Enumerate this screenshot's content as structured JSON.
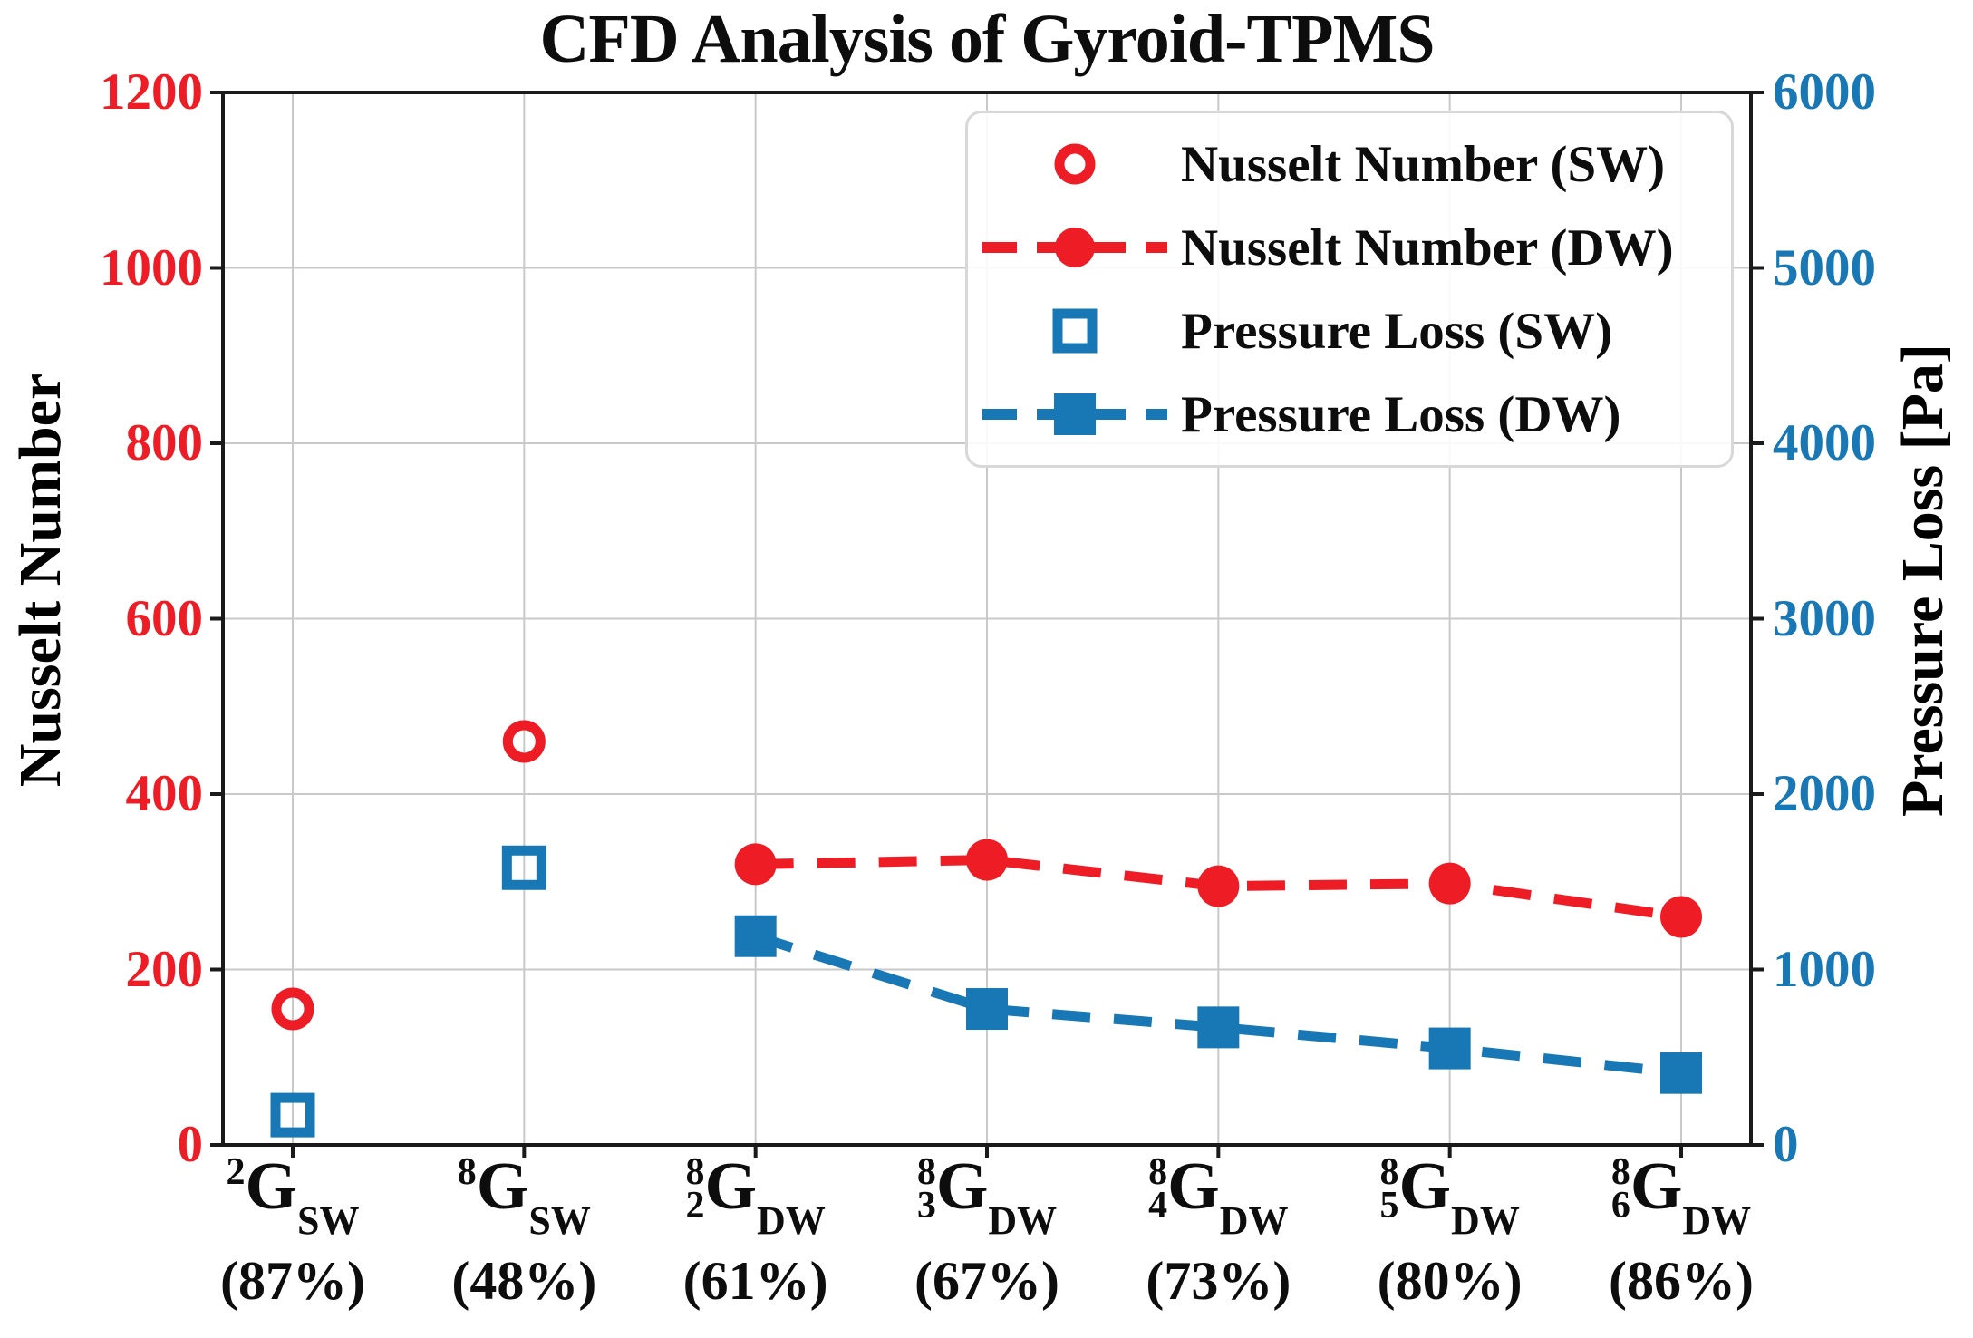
{
  "chart_data": {
    "type": "scatter-line",
    "title": "CFD Analysis of Gyroid-TPMS",
    "grid": true,
    "legend_position": "upper right",
    "axes": {
      "left": {
        "label": "Nusselt Number",
        "color": "#ee1c25",
        "min": 0,
        "max": 1200,
        "ticks": [
          0,
          200,
          400,
          600,
          800,
          1000,
          1200
        ]
      },
      "right": {
        "label": "Pressure Loss [Pa]",
        "color": "#1778b5",
        "min": 0,
        "max": 6000,
        "ticks": [
          0,
          1000,
          2000,
          3000,
          4000,
          5000,
          6000
        ]
      }
    },
    "categories": [
      {
        "sup": "2",
        "presub": "",
        "base": "G",
        "sub": "SW",
        "pct": "(87%)",
        "label": "2G_SW (87%)"
      },
      {
        "sup": "8",
        "presub": "",
        "base": "G",
        "sub": "SW",
        "pct": "(48%)",
        "label": "8G_SW (48%)"
      },
      {
        "sup": "8",
        "presub": "2",
        "base": "G",
        "sub": "DW",
        "pct": "(61%)",
        "label": "8_2G_DW (61%)"
      },
      {
        "sup": "8",
        "presub": "3",
        "base": "G",
        "sub": "DW",
        "pct": "(67%)",
        "label": "8_3G_DW (67%)"
      },
      {
        "sup": "8",
        "presub": "4",
        "base": "G",
        "sub": "DW",
        "pct": "(73%)",
        "label": "8_4G_DW (73%)"
      },
      {
        "sup": "8",
        "presub": "5",
        "base": "G",
        "sub": "DW",
        "pct": "(80%)",
        "label": "8_5G_DW (80%)"
      },
      {
        "sup": "8",
        "presub": "6",
        "base": "G",
        "sub": "DW",
        "pct": "(86%)",
        "label": "8_6G_DW (86%)"
      }
    ],
    "series": [
      {
        "name": "Nusselt Number (SW)",
        "axis": "left",
        "marker": "circle",
        "fill": "open",
        "line": "none",
        "color": "#ee1c25",
        "values": [
          155,
          460,
          null,
          null,
          null,
          null,
          null
        ]
      },
      {
        "name": "Nusselt Number (DW)",
        "axis": "left",
        "marker": "circle",
        "fill": "solid",
        "line": "dashed",
        "color": "#ee1c25",
        "values": [
          null,
          null,
          320,
          325,
          295,
          298,
          260
        ]
      },
      {
        "name": "Pressure Loss (SW)",
        "axis": "right",
        "marker": "square",
        "fill": "open",
        "line": "none",
        "color": "#1778b5",
        "values": [
          170,
          1580,
          null,
          null,
          null,
          null,
          null
        ]
      },
      {
        "name": "Pressure Loss (DW)",
        "axis": "right",
        "marker": "square",
        "fill": "solid",
        "line": "dashed",
        "color": "#1778b5",
        "values": [
          null,
          null,
          1190,
          775,
          670,
          550,
          410
        ]
      }
    ]
  }
}
